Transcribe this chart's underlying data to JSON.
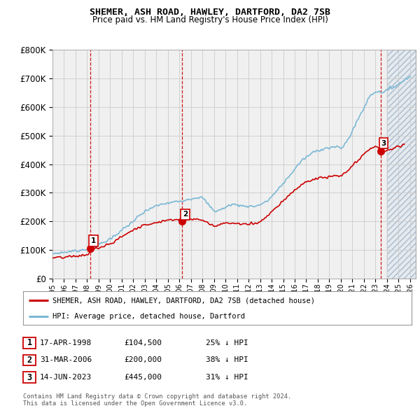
{
  "title": "SHEMER, ASH ROAD, HAWLEY, DARTFORD, DA2 7SB",
  "subtitle": "Price paid vs. HM Land Registry's House Price Index (HPI)",
  "sale_dates_num": [
    1998.29,
    2006.25,
    2023.45
  ],
  "sale_prices": [
    104500,
    200000,
    445000
  ],
  "sale_labels": [
    "1",
    "2",
    "3"
  ],
  "hpi_label": "HPI: Average price, detached house, Dartford",
  "property_label": "SHEMER, ASH ROAD, HAWLEY, DARTFORD, DA2 7SB (detached house)",
  "legend_rows": [
    {
      "num": "1",
      "date": "17-APR-1998",
      "price": "£104,500",
      "pct": "25% ↓ HPI"
    },
    {
      "num": "2",
      "date": "31-MAR-2006",
      "price": "£200,000",
      "pct": "38% ↓ HPI"
    },
    {
      "num": "3",
      "date": "14-JUN-2023",
      "price": "£445,000",
      "pct": "31% ↓ HPI"
    }
  ],
  "footer": "Contains HM Land Registry data © Crown copyright and database right 2024.\nThis data is licensed under the Open Government Licence v3.0.",
  "ylim": [
    0,
    800000
  ],
  "xlim_start": 1995.0,
  "xlim_end": 2026.5,
  "future_start": 2024.0,
  "sale_color": "#cc0000",
  "hpi_color": "#7ab8d4",
  "vline_color": "#cc0000",
  "grid_color": "#cccccc",
  "background_color": "#ffffff",
  "plot_bg_color": "#f0f0f0"
}
